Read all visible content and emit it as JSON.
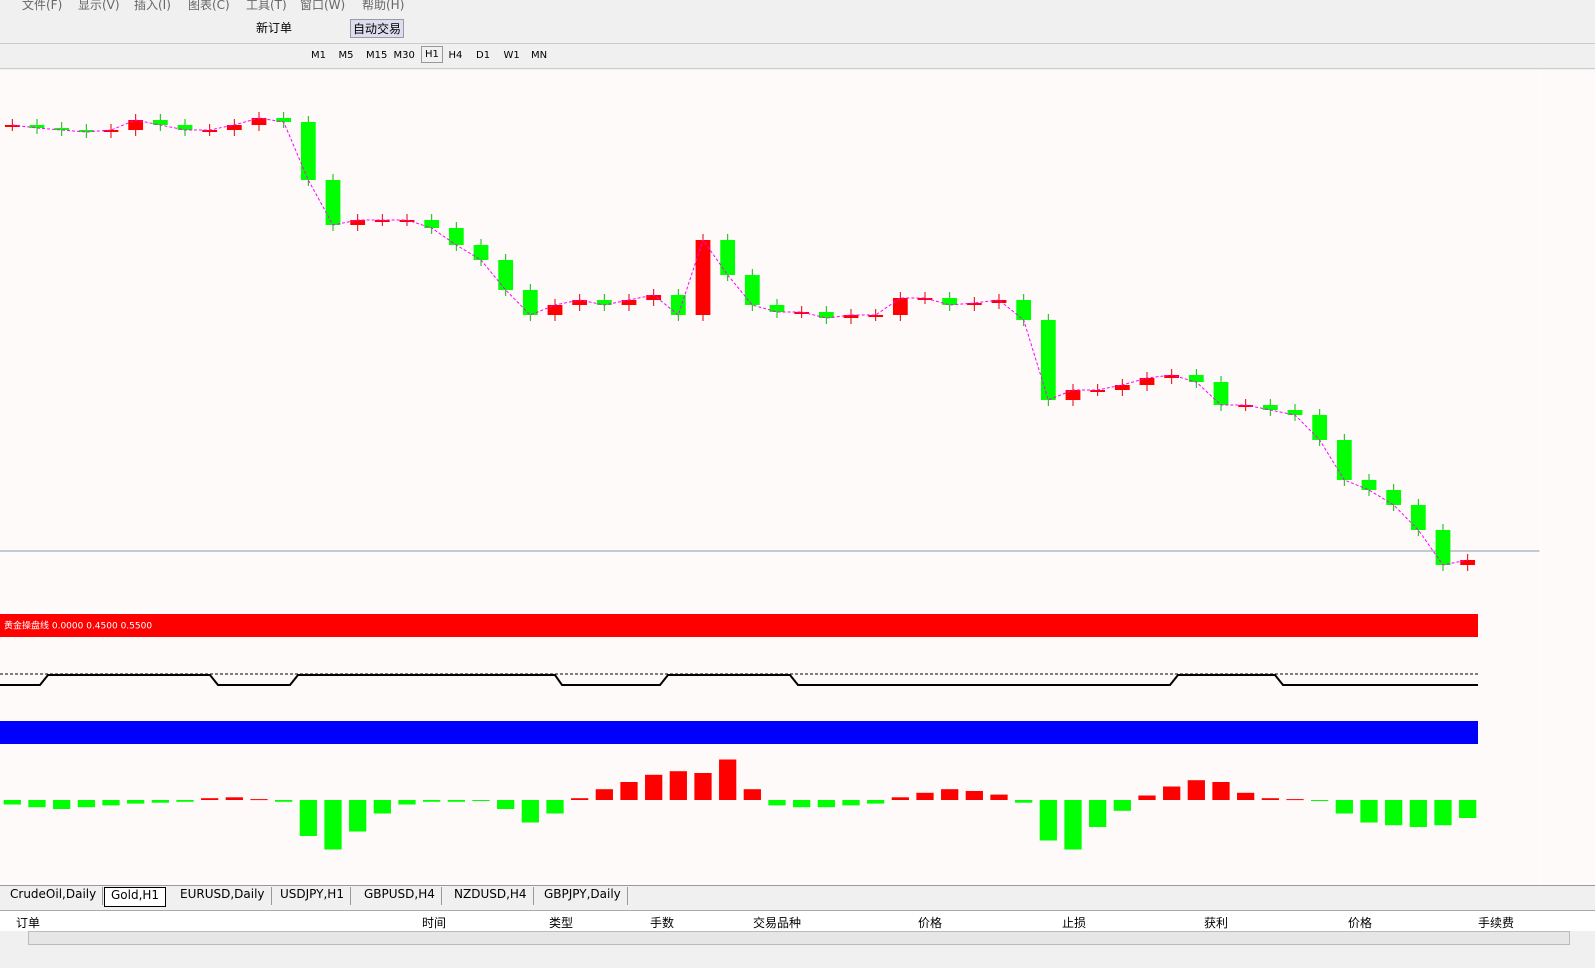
{
  "menu": [
    "文件(F)",
    "显示(V)",
    "插入(I)",
    "图表(C)",
    "工具(T)",
    "窗口(W)",
    "帮助(H)"
  ],
  "toolbar": {
    "new_order": "新订单",
    "auto_trade": "自动交易"
  },
  "timeframes": [
    "M1",
    "M5",
    "M15",
    "M30",
    "H1",
    "H4",
    "D1",
    "W1",
    "MN"
  ],
  "indicator_label": "黄金操盘线 0.0000 0.4500 0.5500",
  "tabs": [
    "CrudeOil,Daily",
    "Gold,H1",
    "EURUSD,Daily",
    "USDJPY,H1",
    "GBPUSD,H4",
    "NZDUSD,H4",
    "GBPJPY,Daily"
  ],
  "active_tab": 1,
  "table": {
    "headers": [
      "订单",
      "时间",
      "类型",
      "手数",
      "交易品种",
      "价格",
      "止损",
      "获利",
      "价格",
      "手续费"
    ]
  },
  "price_chart": {
    "ylim": [
      0,
      540
    ],
    "levels": [
      485,
      482,
      480,
      478,
      480,
      490,
      485,
      480,
      480,
      485,
      492,
      488,
      430,
      385,
      390,
      390,
      390,
      382,
      365,
      350,
      320,
      295,
      305,
      310,
      305,
      310,
      315,
      295,
      370,
      335,
      305,
      298,
      298,
      292,
      295,
      295,
      312,
      312,
      305,
      307,
      310,
      290,
      210,
      220,
      220,
      225,
      232,
      235,
      228,
      205,
      205,
      200,
      195,
      170,
      130,
      120,
      105,
      80,
      45,
      50
    ]
  },
  "histogram": {
    "ylim": [
      -60,
      60
    ],
    "values": [
      -5,
      -8,
      -10,
      -8,
      -6,
      -4,
      -3,
      -2,
      2,
      3,
      1,
      -2,
      -40,
      -55,
      -35,
      -15,
      -5,
      -2,
      -2,
      -1,
      -10,
      -25,
      -15,
      2,
      12,
      20,
      28,
      32,
      30,
      45,
      12,
      -6,
      -8,
      -8,
      -6,
      -4,
      3,
      8,
      12,
      10,
      6,
      -3,
      -45,
      -55,
      -30,
      -12,
      5,
      15,
      22,
      20,
      8,
      2,
      1,
      -1,
      -15,
      -25,
      -28,
      -30,
      -28,
      -20
    ]
  }
}
